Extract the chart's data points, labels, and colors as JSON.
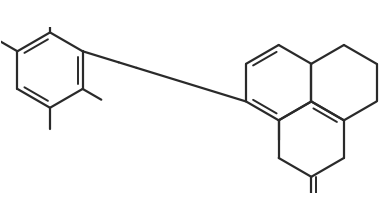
{
  "bg_color": "#ffffff",
  "line_color": "#2a2a2a",
  "line_width": 1.6,
  "dbo": 0.055,
  "fig_width": 3.87,
  "fig_height": 2.2,
  "dpi": 100,
  "r": 0.44
}
